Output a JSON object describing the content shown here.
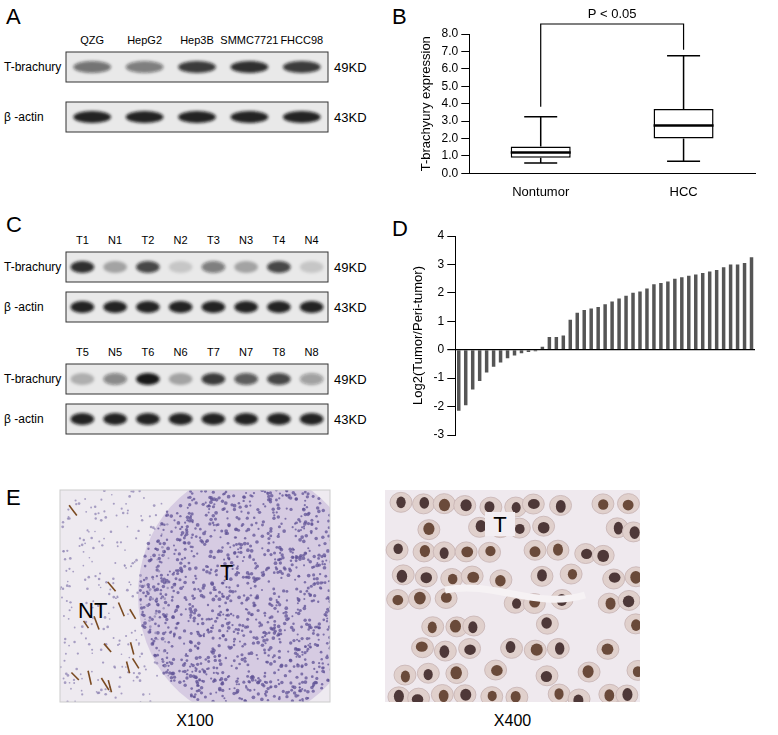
{
  "chart_data": [
    {
      "panel": "B",
      "type": "box",
      "categories": [
        "Nontumor",
        "HCC"
      ],
      "stats": [
        {
          "min": 0.6,
          "q1": 0.9,
          "median": 1.2,
          "q3": 1.55,
          "max": 3.25
        },
        {
          "min": 0.7,
          "q1": 2.0,
          "median": 2.75,
          "q3": 3.7,
          "max": 6.75
        }
      ],
      "color": "#000000",
      "ylabel": "T-brachyury expression",
      "ylim": [
        0,
        8
      ],
      "yticks": [
        {
          "value": 0,
          "label": "0.0"
        },
        {
          "value": 1,
          "label": "1.0"
        },
        {
          "value": 2,
          "label": "2.0"
        },
        {
          "value": 3,
          "label": "3.0"
        },
        {
          "value": 4,
          "label": "4.0"
        },
        {
          "value": 5,
          "label": "5.0"
        },
        {
          "value": 6,
          "label": "6.0"
        },
        {
          "value": 7,
          "label": "7.0"
        },
        {
          "value": 8,
          "label": "8.0"
        }
      ],
      "annotations": [
        {
          "text": "P < 0.05",
          "between": [
            "Nontumor",
            "HCC"
          ]
        }
      ],
      "grid": false
    },
    {
      "panel": "D",
      "type": "bar",
      "categories": [
        null,
        null,
        null,
        null,
        null,
        null,
        null,
        null,
        null,
        null,
        null,
        null,
        null,
        null,
        null,
        null,
        null,
        null,
        null,
        null,
        null,
        null,
        null,
        null,
        null,
        null,
        null,
        null,
        null,
        null,
        null,
        null,
        null,
        null,
        null,
        null,
        null,
        null,
        null,
        null,
        null,
        null,
        null
      ],
      "values": [
        -2.15,
        -1.95,
        -1.4,
        -1.1,
        -0.8,
        -0.6,
        -0.45,
        -0.3,
        -0.2,
        -0.12,
        -0.08,
        -0.05,
        0.1,
        0.45,
        0.45,
        0.5,
        1.05,
        1.3,
        1.4,
        1.45,
        1.5,
        1.6,
        1.7,
        1.8,
        1.9,
        2.0,
        2.05,
        2.15,
        2.3,
        2.35,
        2.4,
        2.5,
        2.55,
        2.6,
        2.65,
        2.7,
        2.75,
        2.8,
        2.9,
        3.0,
        3.0,
        3.05,
        3.25
      ],
      "color": "#555555",
      "ylabel": "Log2(Tumor/Peri-tumor)",
      "ylim": [
        -3,
        4
      ],
      "yticks": [
        -3,
        -2,
        -1,
        0,
        1,
        2,
        3,
        4
      ],
      "tick_labels": "y",
      "grid": false
    }
  ],
  "blots": [
    {
      "panel": "A",
      "sections": [
        {
          "lanes": [
            "QZG",
            "HepG2",
            "Hep3B",
            "SMMC7721",
            "FHCC98"
          ],
          "rows": [
            {
              "name": "T-brachury",
              "size": "49KD",
              "band_intensity": [
                0.55,
                0.5,
                0.8,
                0.85,
                0.8
              ]
            },
            {
              "name": "β -actin",
              "size": "43KD",
              "band_intensity": [
                0.9,
                0.9,
                0.9,
                0.9,
                0.9
              ]
            }
          ]
        }
      ]
    },
    {
      "panel": "C",
      "sections": [
        {
          "lanes": [
            "T1",
            "N1",
            "T2",
            "N2",
            "T3",
            "N3",
            "T4",
            "N4"
          ],
          "rows": [
            {
              "name": "T-brachury",
              "size": "49KD",
              "band_intensity": [
                0.85,
                0.3,
                0.75,
                0.15,
                0.5,
                0.3,
                0.75,
                0.15
              ]
            },
            {
              "name": "β -actin",
              "size": "43KD",
              "band_intensity": [
                0.9,
                0.9,
                0.9,
                0.9,
                0.9,
                0.9,
                0.9,
                0.9
              ]
            }
          ]
        },
        {
          "lanes": [
            "T5",
            "N5",
            "T6",
            "N6",
            "T7",
            "N7",
            "T8",
            "N8"
          ],
          "rows": [
            {
              "name": "T-brachury",
              "size": "49KD",
              "band_intensity": [
                0.25,
                0.45,
                0.95,
                0.3,
                0.8,
                0.65,
                0.75,
                0.35
              ]
            },
            {
              "name": "β -actin",
              "size": "43KD",
              "band_intensity": [
                0.9,
                0.9,
                0.9,
                0.9,
                0.9,
                0.9,
                0.9,
                0.9
              ]
            }
          ]
        }
      ]
    }
  ],
  "images": {
    "panel": "E",
    "items": [
      {
        "region_labels": [
          "NT",
          "T"
        ],
        "magnification": "X100"
      },
      {
        "region_labels": [
          "T"
        ],
        "magnification": "X400"
      }
    ]
  }
}
